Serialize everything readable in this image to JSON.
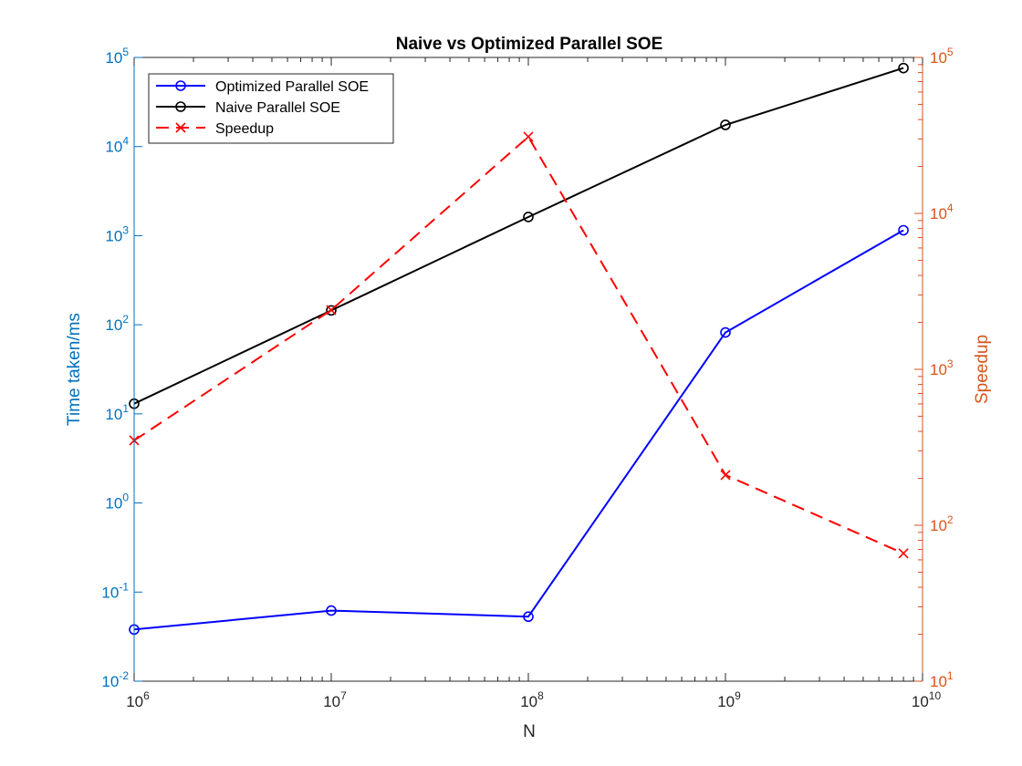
{
  "chart_data": {
    "type": "line",
    "title": "Naive vs Optimized Parallel SOE",
    "xlabel": "N",
    "ylabel_left": "Time taken/ms",
    "ylabel_right": "Speedup",
    "x_scale": "log",
    "y_left_scale": "log",
    "y_right_scale": "log",
    "xlim": [
      1000000,
      10000000000
    ],
    "ylim_left": [
      0.01,
      100000
    ],
    "ylim_right": [
      10,
      100000
    ],
    "x_tick_labels": [
      {
        "base": "10",
        "exp": "6"
      },
      {
        "base": "10",
        "exp": "7"
      },
      {
        "base": "10",
        "exp": "8"
      },
      {
        "base": "10",
        "exp": "9"
      },
      {
        "base": "10",
        "exp": "10"
      }
    ],
    "y_left_tick_labels": [
      {
        "base": "10",
        "exp": "-2"
      },
      {
        "base": "10",
        "exp": "-1"
      },
      {
        "base": "10",
        "exp": "0"
      },
      {
        "base": "10",
        "exp": "1"
      },
      {
        "base": "10",
        "exp": "2"
      },
      {
        "base": "10",
        "exp": "3"
      },
      {
        "base": "10",
        "exp": "4"
      },
      {
        "base": "10",
        "exp": "5"
      }
    ],
    "y_right_tick_labels": [
      {
        "base": "10",
        "exp": "1"
      },
      {
        "base": "10",
        "exp": "2"
      },
      {
        "base": "10",
        "exp": "3"
      },
      {
        "base": "10",
        "exp": "4"
      },
      {
        "base": "10",
        "exp": "5"
      }
    ],
    "x": [
      1000000,
      10000000,
      100000000,
      1000000000,
      8000000000
    ],
    "series": [
      {
        "name": "Optimized Parallel SOE",
        "axis": "left",
        "color": "#0000ff",
        "marker": "circle",
        "line": "solid",
        "values": [
          0.038,
          0.062,
          0.053,
          82,
          1150
        ]
      },
      {
        "name": "Naive Parallel SOE",
        "axis": "left",
        "color": "#000000",
        "marker": "circle",
        "line": "solid",
        "values": [
          13,
          145,
          1620,
          17500,
          76000
        ]
      },
      {
        "name": "Speedup",
        "axis": "right",
        "color": "#ff0000",
        "marker": "x",
        "line": "dashed",
        "values": [
          350,
          2400,
          31000,
          210,
          66
        ]
      }
    ],
    "legend_position": "top-left",
    "left_axis_color": "#0072bd",
    "right_axis_color": "#d95319",
    "grid": false
  }
}
